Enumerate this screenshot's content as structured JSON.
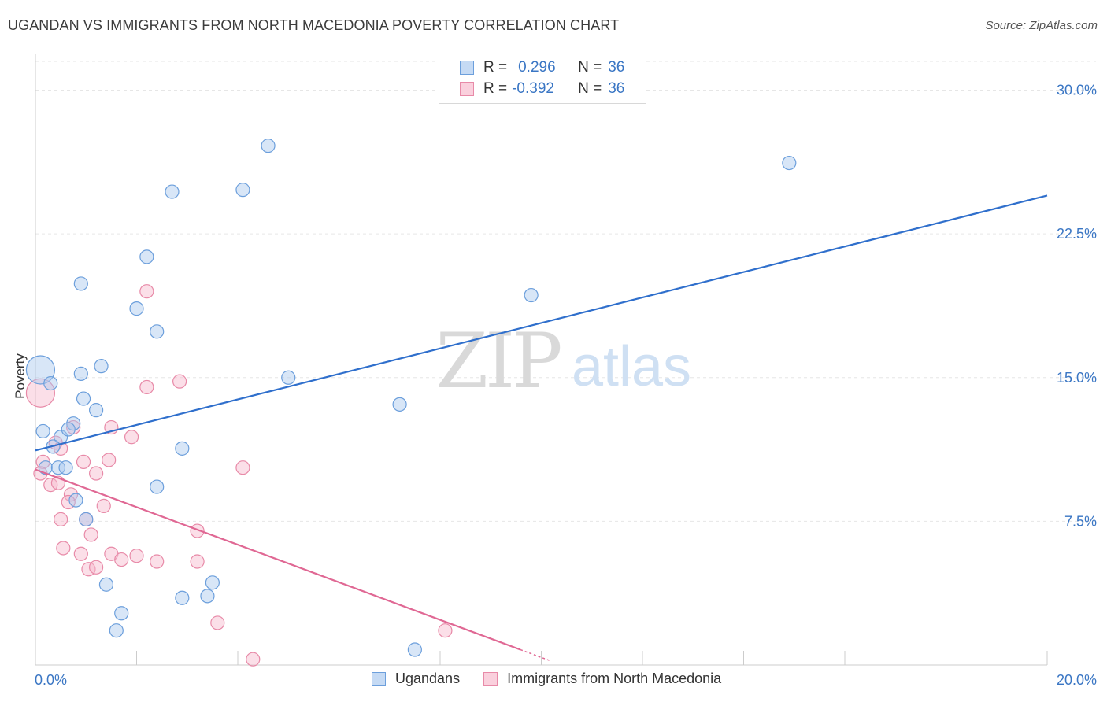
{
  "header": {
    "title": "UGANDAN VS IMMIGRANTS FROM NORTH MACEDONIA POVERTY CORRELATION CHART",
    "source": "Source: ZipAtlas.com"
  },
  "watermark": {
    "zip": "ZIP",
    "atlas": "atlas"
  },
  "legend": {
    "rows": [
      {
        "r_label": "R =",
        "r_value": "0.296",
        "n_label": "N =",
        "n_value": "36",
        "color": "#a9c8ee"
      },
      {
        "r_label": "R =",
        "r_value": "-0.392",
        "n_label": "N =",
        "n_value": "36",
        "color": "#f6b8cb"
      }
    ]
  },
  "series_legend": {
    "ugandans": "Ugandans",
    "immigrants": "Immigrants from North Macedonia"
  },
  "colors": {
    "blue_fill": "#a9c8ee",
    "blue_stroke": "#6c9fdc",
    "blue_line": "#2f6fcc",
    "pink_fill": "#f6b8cb",
    "pink_stroke": "#e88aa8",
    "pink_line": "#e06894",
    "axis_text": "#3a76c4",
    "grid": "#e6e6e6"
  },
  "chart_data": {
    "type": "scatter",
    "title": "UGANDAN VS IMMIGRANTS FROM NORTH MACEDONIA POVERTY CORRELATION CHART",
    "xlabel": "",
    "ylabel": "Poverty",
    "xlim": [
      0,
      20
    ],
    "ylim": [
      0,
      31.5
    ],
    "x_tick_labels": [
      "0.0%",
      "20.0%"
    ],
    "y_ticks": [
      {
        "value": 7.5,
        "label": "7.5%"
      },
      {
        "value": 15.0,
        "label": "15.0%"
      },
      {
        "value": 22.5,
        "label": "22.5%"
      },
      {
        "value": 30.0,
        "label": "30.0%"
      }
    ],
    "series": [
      {
        "name": "Ugandans",
        "r": 0.296,
        "n": 36,
        "trend": {
          "x0": 0,
          "y0": 11.2,
          "x1": 20,
          "y1": 24.5
        },
        "points": [
          {
            "x": 0.1,
            "y": 15.4,
            "big": true
          },
          {
            "x": 0.3,
            "y": 14.7
          },
          {
            "x": 0.15,
            "y": 12.2
          },
          {
            "x": 0.5,
            "y": 11.9
          },
          {
            "x": 0.35,
            "y": 11.4
          },
          {
            "x": 0.2,
            "y": 10.3
          },
          {
            "x": 0.45,
            "y": 10.3
          },
          {
            "x": 0.6,
            "y": 10.3
          },
          {
            "x": 0.75,
            "y": 12.6
          },
          {
            "x": 0.65,
            "y": 12.3
          },
          {
            "x": 0.9,
            "y": 15.2
          },
          {
            "x": 1.3,
            "y": 15.6
          },
          {
            "x": 0.95,
            "y": 13.9
          },
          {
            "x": 1.2,
            "y": 13.3
          },
          {
            "x": 0.8,
            "y": 8.6
          },
          {
            "x": 1.0,
            "y": 7.6
          },
          {
            "x": 0.9,
            "y": 19.9
          },
          {
            "x": 2.0,
            "y": 18.6
          },
          {
            "x": 2.2,
            "y": 21.3
          },
          {
            "x": 2.4,
            "y": 17.4
          },
          {
            "x": 2.7,
            "y": 24.7
          },
          {
            "x": 4.1,
            "y": 24.8
          },
          {
            "x": 4.6,
            "y": 27.1
          },
          {
            "x": 5.0,
            "y": 15.0
          },
          {
            "x": 2.9,
            "y": 11.3
          },
          {
            "x": 2.4,
            "y": 9.3
          },
          {
            "x": 1.4,
            "y": 4.2
          },
          {
            "x": 1.7,
            "y": 2.7
          },
          {
            "x": 1.6,
            "y": 1.8
          },
          {
            "x": 2.9,
            "y": 3.5
          },
          {
            "x": 3.4,
            "y": 3.6
          },
          {
            "x": 3.5,
            "y": 4.3
          },
          {
            "x": 7.2,
            "y": 13.6
          },
          {
            "x": 9.8,
            "y": 19.3
          },
          {
            "x": 14.9,
            "y": 26.2
          },
          {
            "x": 7.5,
            "y": 0.8
          }
        ]
      },
      {
        "name": "Immigrants from North Macedonia",
        "r": -0.392,
        "n": 36,
        "trend": {
          "x0": 0,
          "y0": 10.2,
          "x1": 10.2,
          "y1": 0.2
        },
        "points": [
          {
            "x": 0.1,
            "y": 14.2,
            "big": true
          },
          {
            "x": 0.15,
            "y": 10.6
          },
          {
            "x": 0.1,
            "y": 10.0
          },
          {
            "x": 0.3,
            "y": 9.4
          },
          {
            "x": 0.4,
            "y": 11.6
          },
          {
            "x": 0.45,
            "y": 9.5
          },
          {
            "x": 0.5,
            "y": 11.3
          },
          {
            "x": 0.75,
            "y": 12.4
          },
          {
            "x": 0.7,
            "y": 8.9
          },
          {
            "x": 0.65,
            "y": 8.5
          },
          {
            "x": 0.95,
            "y": 10.6
          },
          {
            "x": 1.2,
            "y": 10.0
          },
          {
            "x": 1.45,
            "y": 10.7
          },
          {
            "x": 1.35,
            "y": 8.3
          },
          {
            "x": 1.0,
            "y": 7.6
          },
          {
            "x": 1.1,
            "y": 6.8
          },
          {
            "x": 0.5,
            "y": 7.6
          },
          {
            "x": 0.55,
            "y": 6.1
          },
          {
            "x": 0.9,
            "y": 5.8
          },
          {
            "x": 1.05,
            "y": 5.0
          },
          {
            "x": 1.2,
            "y": 5.1
          },
          {
            "x": 1.5,
            "y": 12.4
          },
          {
            "x": 1.9,
            "y": 11.9
          },
          {
            "x": 2.2,
            "y": 19.5
          },
          {
            "x": 2.2,
            "y": 14.5
          },
          {
            "x": 2.85,
            "y": 14.8
          },
          {
            "x": 1.5,
            "y": 5.8
          },
          {
            "x": 1.7,
            "y": 5.5
          },
          {
            "x": 2.0,
            "y": 5.7
          },
          {
            "x": 2.4,
            "y": 5.4
          },
          {
            "x": 3.2,
            "y": 7.0
          },
          {
            "x": 3.2,
            "y": 5.4
          },
          {
            "x": 4.1,
            "y": 10.3
          },
          {
            "x": 3.6,
            "y": 2.2
          },
          {
            "x": 4.3,
            "y": 0.3
          },
          {
            "x": 8.1,
            "y": 1.8
          }
        ]
      }
    ]
  }
}
